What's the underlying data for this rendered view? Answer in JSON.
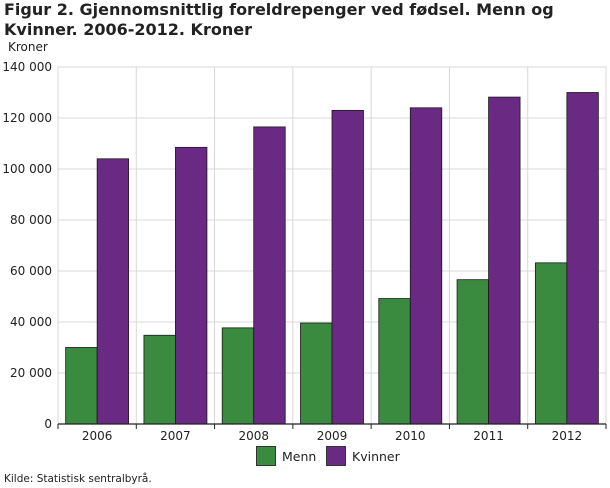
{
  "figure": {
    "title": "Figur 2.  Gjennomsnittlig foreldrepenger ved fødsel. Menn og Kvinner. 2006-2012. Kroner",
    "unit_label": "Kroner",
    "source": "Kilde: Statistisk sentralbyrå."
  },
  "chart_data": {
    "type": "bar",
    "title": "Figur 2.  Gjennomsnittlig foreldrepenger ved fødsel. Menn og Kvinner. 2006-2012. Kroner",
    "xlabel": "",
    "ylabel": "Kroner",
    "categories": [
      "2006",
      "2007",
      "2008",
      "2009",
      "2010",
      "2011",
      "2012"
    ],
    "series": [
      {
        "name": "Menn",
        "color": "#3a8a3f",
        "values": [
          30000,
          34800,
          37700,
          39600,
          49200,
          56600,
          63200
        ]
      },
      {
        "name": "Kvinner",
        "color": "#6a2a83",
        "values": [
          104000,
          108500,
          116500,
          123000,
          124000,
          128200,
          130000
        ]
      }
    ],
    "ylim": [
      0,
      140000
    ],
    "yticks": [
      0,
      20000,
      40000,
      60000,
      80000,
      100000,
      120000,
      140000
    ],
    "ytick_labels": [
      "0",
      "20 000",
      "40 000",
      "60 000",
      "80 000",
      "100 000",
      "120 000",
      "140 000"
    ],
    "grid": true,
    "legend_position": "bottom-center"
  }
}
